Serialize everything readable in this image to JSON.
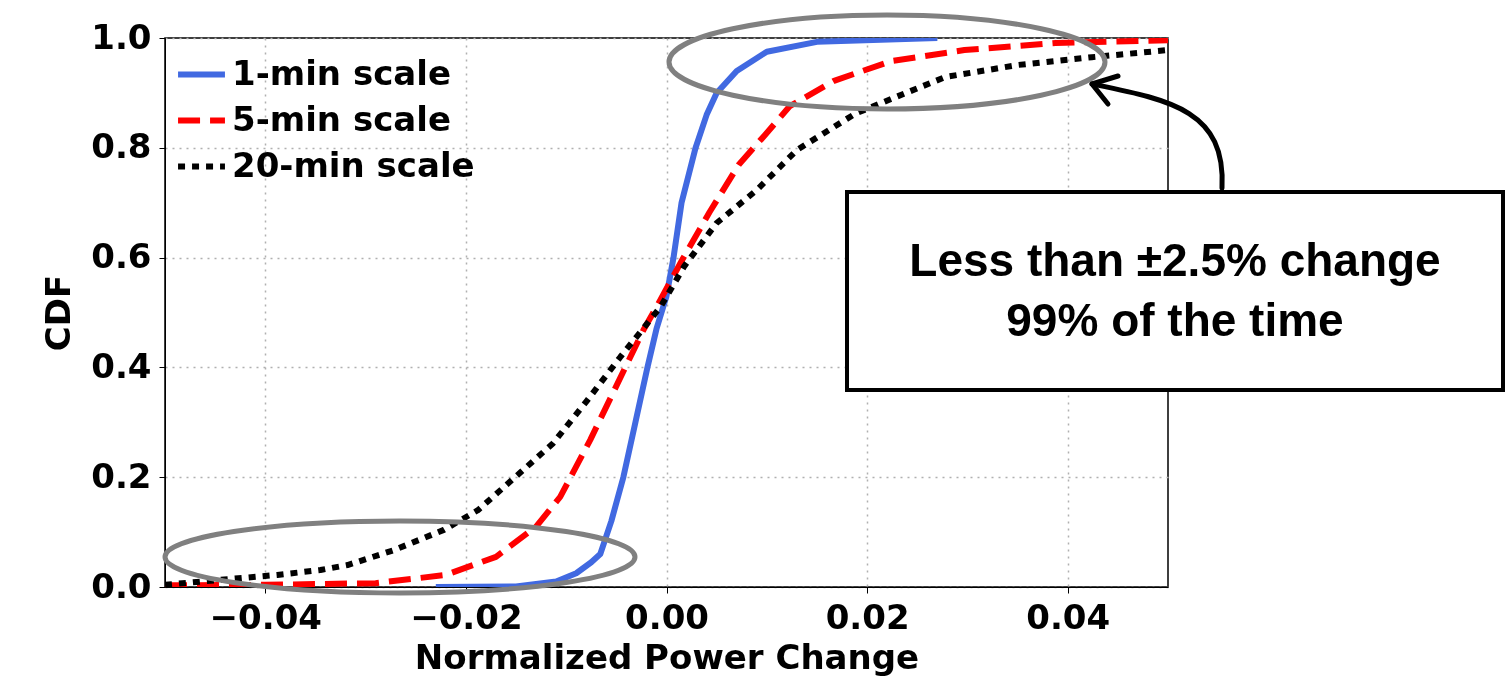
{
  "chart_data": {
    "type": "line",
    "xlabel": "Normalized Power Change",
    "ylabel": "CDF",
    "xlim": [
      -0.05,
      0.05
    ],
    "ylim": [
      0,
      1
    ],
    "xticks": [
      {
        "value": -0.04,
        "label": "−0.04"
      },
      {
        "value": -0.02,
        "label": "−0.02"
      },
      {
        "value": 0,
        "label": "0.00"
      },
      {
        "value": 0.02,
        "label": "0.02"
      },
      {
        "value": 0.04,
        "label": "0.04"
      }
    ],
    "yticks": [
      {
        "value": 0,
        "label": "0.0"
      },
      {
        "value": 0.2,
        "label": "0.2"
      },
      {
        "value": 0.4,
        "label": "0.4"
      },
      {
        "value": 0.6,
        "label": "0.6"
      },
      {
        "value": 0.8,
        "label": "0.8"
      },
      {
        "value": 1,
        "label": "1.0"
      }
    ],
    "grid": true,
    "legend": "top left",
    "marker": "none",
    "annotations": [
      "Less than ±2.5% change\n99% of the time"
    ],
    "series": [
      {
        "name": "1-min scale",
        "color": "#4169e1",
        "line_style": "solid",
        "x": [
          -0.023,
          -0.015,
          -0.011,
          -0.009,
          -0.0075,
          -0.0066,
          -0.0055,
          -0.0043,
          -0.0031,
          -0.0019,
          -0.001,
          0,
          0.0007,
          0.0015,
          0.0029,
          0.004,
          0.005,
          0.007,
          0.01,
          0.015,
          0.027
        ],
        "values": [
          0,
          0.001,
          0.01,
          0.025,
          0.045,
          0.06,
          0.12,
          0.2,
          0.3,
          0.4,
          0.47,
          0.53,
          0.6,
          0.7,
          0.8,
          0.86,
          0.9,
          0.94,
          0.975,
          0.993,
          1
        ]
      },
      {
        "name": "5-min scale",
        "color": "#ff0000",
        "line_style": "dashed",
        "x": [
          -0.05,
          -0.04,
          -0.029,
          -0.022,
          -0.017,
          -0.013,
          -0.0106,
          -0.0076,
          -0.0049,
          -0.0023,
          -0.001,
          0.0016,
          0.0043,
          0.0072,
          0.0098,
          0.0123,
          0.0167,
          0.0224,
          0.0297,
          0.0388,
          0.05
        ],
        "values": [
          0.003,
          0.004,
          0.007,
          0.022,
          0.055,
          0.11,
          0.164,
          0.268,
          0.37,
          0.468,
          0.51,
          0.597,
          0.683,
          0.769,
          0.823,
          0.876,
          0.922,
          0.958,
          0.978,
          0.991,
          0.996
        ]
      },
      {
        "name": "20-min scale",
        "color": "#000000",
        "line_style": "dotted",
        "x": [
          -0.05,
          -0.0445,
          -0.0388,
          -0.0345,
          -0.0318,
          -0.0272,
          -0.0222,
          -0.0188,
          -0.0146,
          -0.0113,
          -0.0079,
          -0.0046,
          -0.0006,
          0.0018,
          0.005,
          0.009,
          0.013,
          0.0188,
          0.0224,
          0.0278,
          0.0351,
          0.0424,
          0.05
        ],
        "values": [
          0.004,
          0.013,
          0.022,
          0.031,
          0.04,
          0.067,
          0.104,
          0.14,
          0.208,
          0.262,
          0.34,
          0.419,
          0.51,
          0.585,
          0.663,
          0.723,
          0.796,
          0.862,
          0.889,
          0.929,
          0.951,
          0.965,
          0.978
        ]
      }
    ]
  }
}
